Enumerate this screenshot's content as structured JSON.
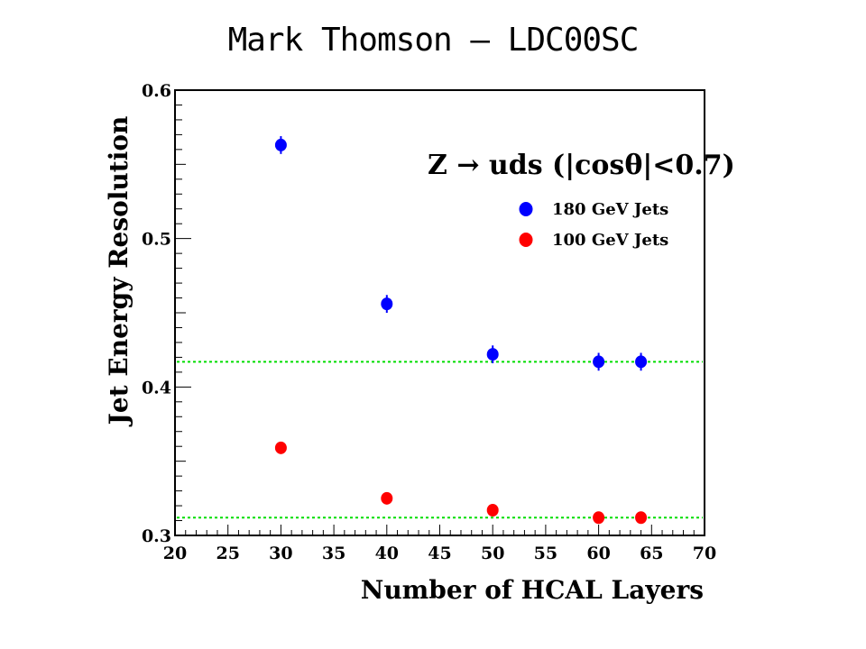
{
  "slide": {
    "title": "Mark Thomson – LDC00SC"
  },
  "chart_data": {
    "type": "scatter",
    "title": "",
    "xlabel": "Number of HCAL Layers",
    "ylabel": "Jet Energy Resolution",
    "xlim": [
      20,
      70
    ],
    "ylim": [
      0.3,
      0.6
    ],
    "x_ticks": [
      20,
      25,
      30,
      35,
      40,
      45,
      50,
      55,
      60,
      65,
      70
    ],
    "x_tick_labels": [
      "20",
      "25",
      "30",
      "35",
      "40",
      "45",
      "50",
      "55",
      "60",
      "65",
      "70"
    ],
    "y_ticks": [
      0.3,
      0.4,
      0.5,
      0.6
    ],
    "y_tick_labels": [
      "0.3",
      "0.4",
      "0.5",
      "0.6"
    ],
    "grid": false,
    "legend": {
      "position": "top-right",
      "header": "Z → uds (|cosθ|<0.7)"
    },
    "series": [
      {
        "name": "180 GeV Jets",
        "color": "#0000ff",
        "x": [
          30,
          40,
          50,
          60,
          64
        ],
        "y": [
          0.563,
          0.456,
          0.422,
          0.417,
          0.417
        ],
        "yerr": [
          0.006,
          0.006,
          0.006,
          0.006,
          0.006
        ]
      },
      {
        "name": "100 GeV Jets",
        "color": "#ff0000",
        "x": [
          30,
          40,
          50,
          60,
          64
        ],
        "y": [
          0.359,
          0.325,
          0.317,
          0.312,
          0.312
        ],
        "yerr": [
          0.003,
          0.003,
          0.003,
          0.003,
          0.003
        ]
      }
    ],
    "reference_lines": [
      {
        "y": 0.417,
        "color": "#00dd00",
        "style": "dotted"
      },
      {
        "y": 0.312,
        "color": "#00dd00",
        "style": "dotted"
      }
    ]
  }
}
